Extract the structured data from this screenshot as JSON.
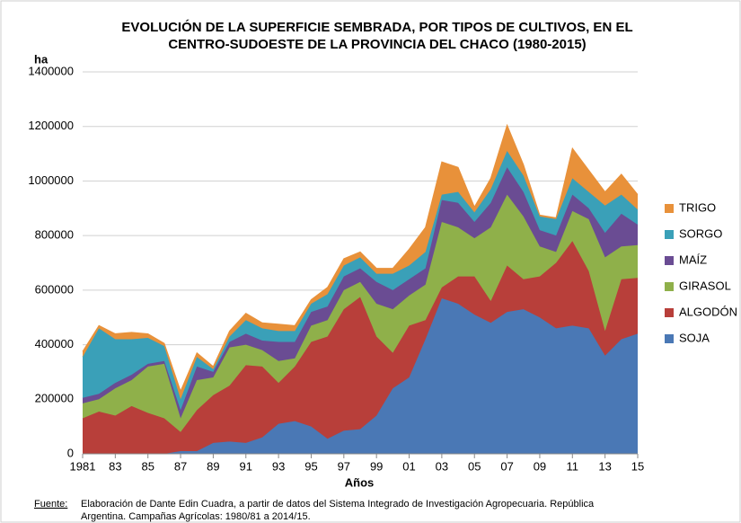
{
  "chart_data": {
    "type": "stacked_area",
    "title": [
      "EVOLUCIÓN DE LA SUPERFICIE SEMBRADA, POR TIPOS DE CULTIVOS, EN EL",
      "CENTRO-SUDOESTE DE LA PROVINCIA DEL CHACO (1980-2015)"
    ],
    "y_label": "ha",
    "x_label": "Años",
    "source_label": "Fuente:",
    "source": [
      "Elaboración de Dante Edin Cuadra, a partir de datos del Sistema Integrado de Investigación Agropecuaria. República",
      "Argentina. Campañas Agrícolas: 1980/81 a 2014/15."
    ],
    "x": [
      1981,
      1982,
      1983,
      1984,
      1985,
      1986,
      1987,
      1988,
      1989,
      1990,
      1991,
      1992,
      1993,
      1994,
      1995,
      1996,
      1997,
      1998,
      1999,
      2000,
      2001,
      2002,
      2003,
      2004,
      2005,
      2006,
      2007,
      2008,
      2009,
      2010,
      2011,
      2012,
      2013,
      2014,
      2015
    ],
    "xlim": [
      1981,
      2015
    ],
    "xticks": [
      1981,
      {
        "value": 1983,
        "label": "83"
      },
      {
        "value": 1985,
        "label": "85"
      },
      {
        "value": 1987,
        "label": "87"
      },
      {
        "value": 1989,
        "label": "89"
      },
      {
        "value": 1991,
        "label": "91"
      },
      {
        "value": 1993,
        "label": "93"
      },
      {
        "value": 1995,
        "label": "95"
      },
      {
        "value": 1997,
        "label": "97"
      },
      {
        "value": 1999,
        "label": "99"
      },
      {
        "value": 2001,
        "label": "01"
      },
      {
        "value": 2003,
        "label": "03"
      },
      {
        "value": 2005,
        "label": "05"
      },
      {
        "value": 2007,
        "label": "07"
      },
      {
        "value": 2009,
        "label": "09"
      },
      {
        "value": 2011,
        "label": "11"
      },
      {
        "value": 2013,
        "label": "13"
      },
      {
        "value": 2015,
        "label": "15"
      }
    ],
    "ylim": [
      0,
      1400000
    ],
    "yticks": [
      0,
      200000,
      400000,
      600000,
      800000,
      1000000,
      1200000,
      1400000
    ],
    "grid": true,
    "legend": "right",
    "series": [
      {
        "name": "SOJA",
        "color": "#4a78b5",
        "values": [
          0,
          0,
          0,
          0,
          0,
          0,
          10000,
          10000,
          40000,
          45000,
          40000,
          60000,
          110000,
          120000,
          100000,
          55000,
          85000,
          90000,
          140000,
          240000,
          280000,
          420000,
          570000,
          550000,
          510000,
          480000,
          520000,
          530000,
          500000,
          460000,
          470000,
          460000,
          360000,
          420000,
          440000
        ]
      },
      {
        "name": "ALGODÓN",
        "color": "#b83f3a",
        "values": [
          130000,
          155000,
          140000,
          175000,
          150000,
          130000,
          70000,
          150000,
          175000,
          205000,
          285000,
          260000,
          150000,
          200000,
          310000,
          375000,
          445000,
          485000,
          290000,
          130000,
          190000,
          70000,
          40000,
          100000,
          140000,
          80000,
          170000,
          110000,
          150000,
          240000,
          310000,
          210000,
          90000,
          220000,
          205000
        ]
      },
      {
        "name": "GIRASOL",
        "color": "#8fb04a",
        "values": [
          55000,
          45000,
          100000,
          95000,
          170000,
          200000,
          50000,
          110000,
          65000,
          140000,
          75000,
          60000,
          80000,
          30000,
          60000,
          60000,
          70000,
          55000,
          120000,
          160000,
          110000,
          130000,
          240000,
          180000,
          140000,
          270000,
          260000,
          230000,
          110000,
          40000,
          110000,
          190000,
          270000,
          120000,
          120000
        ]
      },
      {
        "name": "MAÍZ",
        "color": "#6a4c93",
        "values": [
          20000,
          20000,
          20000,
          20000,
          10000,
          10000,
          30000,
          50000,
          20000,
          20000,
          40000,
          35000,
          70000,
          60000,
          50000,
          50000,
          50000,
          50000,
          80000,
          70000,
          60000,
          60000,
          80000,
          90000,
          60000,
          90000,
          100000,
          90000,
          60000,
          60000,
          60000,
          40000,
          90000,
          120000,
          75000
        ]
      },
      {
        "name": "SORGO",
        "color": "#3aa0b8",
        "values": [
          150000,
          240000,
          160000,
          130000,
          95000,
          55000,
          40000,
          35000,
          10000,
          20000,
          50000,
          45000,
          40000,
          40000,
          30000,
          45000,
          40000,
          40000,
          30000,
          60000,
          50000,
          60000,
          20000,
          40000,
          35000,
          50000,
          60000,
          60000,
          50000,
          60000,
          60000,
          60000,
          100000,
          70000,
          55000
        ]
      },
      {
        "name": "TRIGO",
        "color": "#e8913a",
        "values": [
          20000,
          10000,
          20000,
          25000,
          15000,
          10000,
          30000,
          15000,
          10000,
          20000,
          25000,
          20000,
          25000,
          20000,
          15000,
          25000,
          25000,
          20000,
          20000,
          20000,
          60000,
          90000,
          120000,
          90000,
          20000,
          40000,
          95000,
          40000,
          5000,
          5000,
          110000,
          80000,
          50000,
          75000,
          55000
        ]
      }
    ]
  }
}
